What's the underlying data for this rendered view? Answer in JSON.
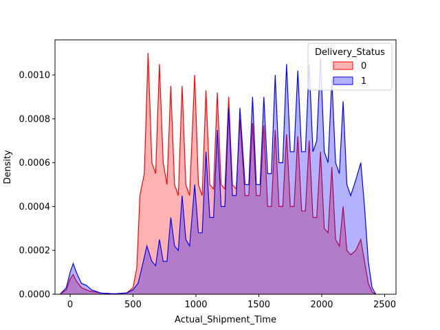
{
  "chart_data": {
    "type": "area",
    "subtype": "kde",
    "title": "",
    "xlabel": "Actual_Shipment_Time",
    "ylabel": "Density",
    "xlim": [
      -120,
      2590
    ],
    "ylim": [
      0,
      0.00116
    ],
    "xticks": [
      0,
      500,
      1000,
      1500,
      2000,
      2500
    ],
    "yticks": [
      0.0,
      0.0002,
      0.0004,
      0.0006,
      0.0008,
      0.001
    ],
    "ytick_labels": [
      "0.0000",
      "0.0002",
      "0.0004",
      "0.0006",
      "0.0008",
      "0.0010"
    ],
    "grid": false,
    "legend": {
      "title": "Delivery_Status",
      "placement": "top-right",
      "entries": [
        "0",
        "1"
      ]
    },
    "series": [
      {
        "name": "0",
        "color": "#ff0000",
        "points": [
          [
            -80,
            0
          ],
          [
            -30,
            2e-05
          ],
          [
            0,
            7e-05
          ],
          [
            25,
            9e-05
          ],
          [
            50,
            6e-05
          ],
          [
            90,
            3e-05
          ],
          [
            150,
            1.5e-05
          ],
          [
            250,
            5e-06
          ],
          [
            350,
            2e-06
          ],
          [
            450,
            6e-06
          ],
          [
            500,
            3e-05
          ],
          [
            530,
            0.00012
          ],
          [
            555,
            0.00045
          ],
          [
            590,
            0.00055
          ],
          [
            620,
            0.0011
          ],
          [
            650,
            0.0006
          ],
          [
            680,
            0.00055
          ],
          [
            710,
            0.00105
          ],
          [
            740,
            0.0006
          ],
          [
            770,
            0.0005
          ],
          [
            800,
            0.00095
          ],
          [
            830,
            0.0005
          ],
          [
            860,
            0.00045
          ],
          [
            890,
            0.00095
          ],
          [
            920,
            0.0005
          ],
          [
            950,
            0.00045
          ],
          [
            990,
            0.001
          ],
          [
            1020,
            0.0005
          ],
          [
            1050,
            0.00045
          ],
          [
            1080,
            0.00093
          ],
          [
            1110,
            0.0005
          ],
          [
            1140,
            0.00048
          ],
          [
            1170,
            0.00092
          ],
          [
            1200,
            0.0005
          ],
          [
            1230,
            0.00048
          ],
          [
            1260,
            0.0009
          ],
          [
            1290,
            0.0005
          ],
          [
            1320,
            0.00048
          ],
          [
            1350,
            0.0008
          ],
          [
            1390,
            0.00045
          ],
          [
            1420,
            0.00045
          ],
          [
            1450,
            0.00078
          ],
          [
            1480,
            0.00045
          ],
          [
            1510,
            0.00045
          ],
          [
            1540,
            0.00077
          ],
          [
            1570,
            0.0004
          ],
          [
            1600,
            0.0004
          ],
          [
            1630,
            0.00075
          ],
          [
            1660,
            0.0004
          ],
          [
            1690,
            0.0004
          ],
          [
            1720,
            0.00073
          ],
          [
            1750,
            0.0004
          ],
          [
            1780,
            0.0004
          ],
          [
            1810,
            0.00072
          ],
          [
            1840,
            0.00038
          ],
          [
            1870,
            0.00038
          ],
          [
            1900,
            0.0007
          ],
          [
            1930,
            0.00035
          ],
          [
            1960,
            0.00035
          ],
          [
            1990,
            0.00065
          ],
          [
            2020,
            0.0003
          ],
          [
            2050,
            0.00028
          ],
          [
            2080,
            0.00058
          ],
          [
            2110,
            0.00025
          ],
          [
            2140,
            0.00022
          ],
          [
            2170,
            0.0004
          ],
          [
            2200,
            0.0002
          ],
          [
            2230,
            0.00018
          ],
          [
            2270,
            0.0002
          ],
          [
            2310,
            0.00025
          ],
          [
            2340,
            0.00015
          ],
          [
            2370,
            5e-05
          ],
          [
            2400,
            1e-05
          ],
          [
            2430,
            0
          ]
        ]
      },
      {
        "name": "1",
        "color": "#0000ff",
        "points": [
          [
            -80,
            0
          ],
          [
            -30,
            3e-05
          ],
          [
            0,
            0.0001
          ],
          [
            25,
            0.00014
          ],
          [
            50,
            0.0001
          ],
          [
            90,
            5e-05
          ],
          [
            130,
            4e-05
          ],
          [
            170,
            2e-05
          ],
          [
            250,
            5e-06
          ],
          [
            350,
            2e-06
          ],
          [
            450,
            6e-06
          ],
          [
            500,
            2e-05
          ],
          [
            540,
            5e-05
          ],
          [
            570,
            0.00012
          ],
          [
            610,
            0.00022
          ],
          [
            650,
            0.00015
          ],
          [
            680,
            0.00013
          ],
          [
            710,
            0.00025
          ],
          [
            740,
            0.00015
          ],
          [
            770,
            0.00015
          ],
          [
            800,
            0.00035
          ],
          [
            830,
            0.00022
          ],
          [
            860,
            0.0002
          ],
          [
            890,
            0.00045
          ],
          [
            920,
            0.00025
          ],
          [
            950,
            0.00022
          ],
          [
            990,
            0.0005
          ],
          [
            1020,
            0.00028
          ],
          [
            1050,
            0.00028
          ],
          [
            1080,
            0.00065
          ],
          [
            1110,
            0.00035
          ],
          [
            1140,
            0.00035
          ],
          [
            1170,
            0.00075
          ],
          [
            1200,
            0.0004
          ],
          [
            1230,
            0.0004
          ],
          [
            1260,
            0.00085
          ],
          [
            1290,
            0.00045
          ],
          [
            1320,
            0.00045
          ],
          [
            1350,
            0.00085
          ],
          [
            1390,
            0.0005
          ],
          [
            1420,
            0.0005
          ],
          [
            1450,
            0.0009
          ],
          [
            1480,
            0.0005
          ],
          [
            1510,
            0.0005
          ],
          [
            1540,
            0.0009
          ],
          [
            1570,
            0.00055
          ],
          [
            1600,
            0.00055
          ],
          [
            1630,
            0.001
          ],
          [
            1660,
            0.0006
          ],
          [
            1690,
            0.0006
          ],
          [
            1720,
            0.00105
          ],
          [
            1750,
            0.00065
          ],
          [
            1780,
            0.00065
          ],
          [
            1810,
            0.00102
          ],
          [
            1840,
            0.00065
          ],
          [
            1870,
            0.00065
          ],
          [
            1900,
            0.00105
          ],
          [
            1930,
            0.00065
          ],
          [
            1960,
            0.0007
          ],
          [
            1990,
            0.00108
          ],
          [
            2020,
            0.00065
          ],
          [
            2050,
            0.0006
          ],
          [
            2080,
            0.00098
          ],
          [
            2110,
            0.0006
          ],
          [
            2140,
            0.00055
          ],
          [
            2170,
            0.00088
          ],
          [
            2200,
            0.0005
          ],
          [
            2230,
            0.00045
          ],
          [
            2270,
            0.00052
          ],
          [
            2310,
            0.0006
          ],
          [
            2340,
            0.0004
          ],
          [
            2370,
            0.00015
          ],
          [
            2400,
            3e-05
          ],
          [
            2430,
            0
          ]
        ]
      }
    ]
  }
}
